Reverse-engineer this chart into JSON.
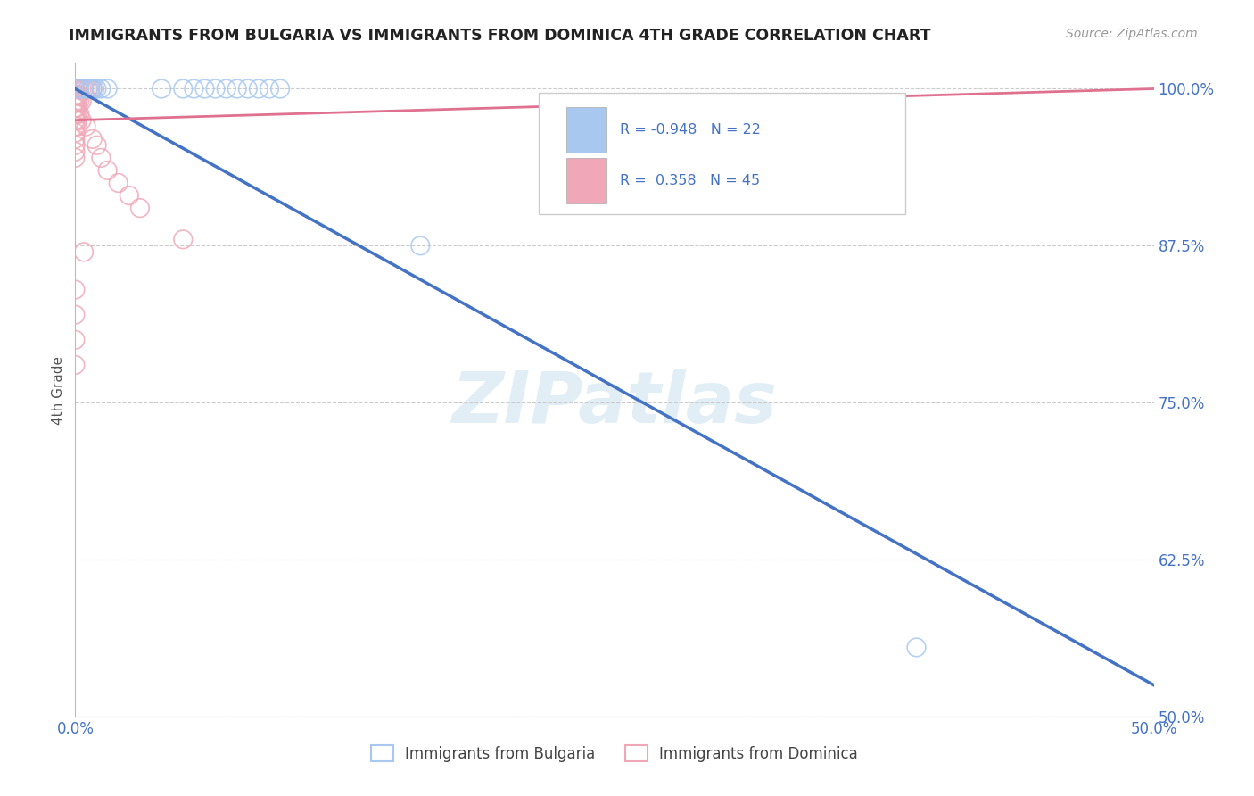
{
  "title": "IMMIGRANTS FROM BULGARIA VS IMMIGRANTS FROM DOMINICA 4TH GRADE CORRELATION CHART",
  "source": "Source: ZipAtlas.com",
  "ylabel": "4th Grade",
  "xlim": [
    0.0,
    0.5
  ],
  "ylim": [
    0.5,
    1.02
  ],
  "xticks": [
    0.0,
    0.125,
    0.25,
    0.375,
    0.5
  ],
  "xticklabels": [
    "0.0%",
    "",
    "",
    "",
    "50.0%"
  ],
  "yticks": [
    0.5,
    0.625,
    0.75,
    0.875,
    1.0
  ],
  "yticklabels": [
    "50.0%",
    "62.5%",
    "75.0%",
    "87.5%",
    "100.0%"
  ],
  "legend_label1": "Immigrants from Bulgaria",
  "legend_label2": "Immigrants from Dominica",
  "bulgaria_color": "#a8c8f0",
  "dominica_color": "#f0a8b8",
  "bulgaria_line_color": "#4472c4",
  "dominica_line_color": "#e07090",
  "watermark": "ZIPatlas",
  "background_color": "#ffffff",
  "grid_color": "#cccccc",
  "title_color": "#222222",
  "axis_label_color": "#4472c4",
  "r_text_color": "#4472c4",
  "bulgaria_scatter": [
    [
      0.002,
      1.0
    ],
    [
      0.004,
      1.0
    ],
    [
      0.006,
      1.0
    ],
    [
      0.007,
      1.0
    ],
    [
      0.008,
      1.0
    ],
    [
      0.009,
      1.0
    ],
    [
      0.01,
      1.0
    ],
    [
      0.012,
      1.0
    ],
    [
      0.015,
      1.0
    ],
    [
      0.04,
      1.0
    ],
    [
      0.05,
      1.0
    ],
    [
      0.055,
      1.0
    ],
    [
      0.06,
      1.0
    ],
    [
      0.065,
      1.0
    ],
    [
      0.07,
      1.0
    ],
    [
      0.075,
      1.0
    ],
    [
      0.08,
      1.0
    ],
    [
      0.085,
      1.0
    ],
    [
      0.09,
      1.0
    ],
    [
      0.095,
      1.0
    ],
    [
      0.16,
      0.875
    ],
    [
      0.39,
      0.555
    ]
  ],
  "dominica_scatter": [
    [
      0.0,
      1.0
    ],
    [
      0.001,
      1.0
    ],
    [
      0.002,
      1.0
    ],
    [
      0.003,
      1.0
    ],
    [
      0.004,
      1.0
    ],
    [
      0.005,
      1.0
    ],
    [
      0.006,
      1.0
    ],
    [
      0.007,
      1.0
    ],
    [
      0.008,
      1.0
    ],
    [
      0.0,
      0.995
    ],
    [
      0.001,
      0.995
    ],
    [
      0.002,
      0.995
    ],
    [
      0.0,
      0.99
    ],
    [
      0.001,
      0.99
    ],
    [
      0.002,
      0.99
    ],
    [
      0.003,
      0.99
    ],
    [
      0.0,
      0.985
    ],
    [
      0.001,
      0.985
    ],
    [
      0.0,
      0.98
    ],
    [
      0.001,
      0.98
    ],
    [
      0.002,
      0.98
    ],
    [
      0.0,
      0.975
    ],
    [
      0.001,
      0.975
    ],
    [
      0.0,
      0.97
    ],
    [
      0.001,
      0.97
    ],
    [
      0.0,
      0.965
    ],
    [
      0.0,
      0.96
    ],
    [
      0.0,
      0.955
    ],
    [
      0.0,
      0.95
    ],
    [
      0.0,
      0.945
    ],
    [
      0.003,
      0.975
    ],
    [
      0.005,
      0.97
    ],
    [
      0.008,
      0.96
    ],
    [
      0.01,
      0.955
    ],
    [
      0.012,
      0.945
    ],
    [
      0.015,
      0.935
    ],
    [
      0.02,
      0.925
    ],
    [
      0.025,
      0.915
    ],
    [
      0.03,
      0.905
    ],
    [
      0.004,
      0.87
    ],
    [
      0.05,
      0.88
    ],
    [
      0.0,
      0.84
    ],
    [
      0.0,
      0.82
    ],
    [
      0.0,
      0.8
    ],
    [
      0.0,
      0.78
    ]
  ],
  "bulgaria_line": [
    [
      0.0,
      1.0
    ],
    [
      0.5,
      0.525
    ]
  ],
  "dominica_line": [
    [
      0.0,
      0.975
    ],
    [
      0.5,
      1.0
    ]
  ]
}
